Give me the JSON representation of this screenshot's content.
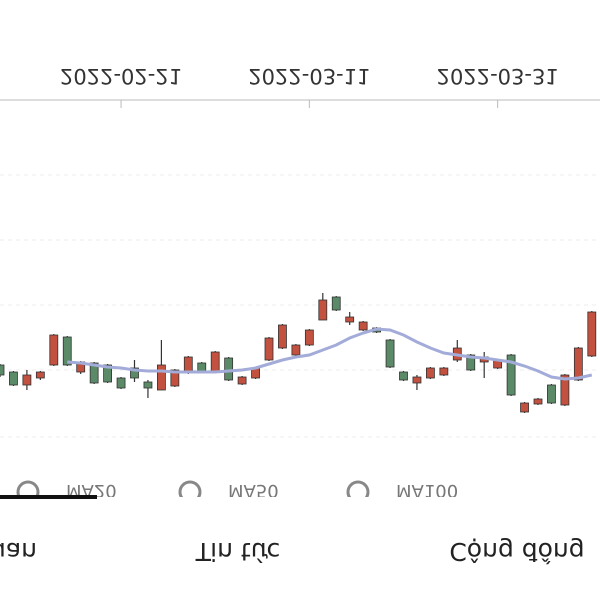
{
  "chart_data": {
    "type": "candlestick",
    "tabs": [
      "Tổng quan",
      "Tin tức",
      "Cộng đồng"
    ],
    "legend": [
      "MA20",
      "MA50",
      "MA100"
    ],
    "categories": [
      null,
      null,
      null,
      null,
      null,
      null,
      null,
      null,
      null,
      "2022-02-21",
      null,
      null,
      null,
      null,
      null,
      null,
      null,
      null,
      null,
      null,
      null,
      null,
      null,
      "2022-03-11",
      null,
      null,
      null,
      null,
      null,
      null,
      null,
      null,
      null,
      null,
      null,
      null,
      null,
      "2022-03-31",
      null,
      null,
      null,
      null,
      null,
      null,
      null
    ],
    "open": [
      365,
      372,
      385,
      378,
      365,
      337,
      372,
      363,
      365,
      378,
      368,
      382,
      390,
      386,
      373,
      363,
      372,
      358,
      384,
      378,
      360,
      348,
      355,
      345,
      320,
      297,
      322,
      330,
      328,
      340,
      372,
      383,
      378,
      375,
      360,
      355,
      362,
      368,
      355,
      412,
      404,
      385,
      405,
      380,
      356
    ],
    "high": [
      377,
      386,
      390,
      380,
      366,
      366,
      374,
      384,
      383,
      389,
      382,
      398,
      390,
      387,
      374,
      373,
      373,
      381,
      385,
      379,
      361,
      349,
      356,
      346,
      320,
      311,
      325,
      331,
      333,
      368,
      381,
      390,
      379,
      376,
      362,
      371,
      378,
      369,
      396,
      413,
      405,
      404,
      406,
      381,
      357
    ],
    "low": [
      364,
      371,
      370,
      371,
      334,
      336,
      361,
      362,
      364,
      377,
      360,
      380,
      340,
      369,
      356,
      362,
      351,
      357,
      376,
      367,
      337,
      324,
      344,
      329,
      293,
      296,
      312,
      321,
      327,
      339,
      371,
      375,
      367,
      367,
      340,
      354,
      352,
      359,
      354,
      402,
      398,
      384,
      374,
      347,
      311
    ],
    "close": [
      375,
      385,
      375,
      372,
      335,
      365,
      362,
      383,
      382,
      388,
      378,
      388,
      365,
      370,
      357,
      372,
      352,
      380,
      377,
      368,
      338,
      325,
      345,
      330,
      300,
      310,
      317,
      322,
      332,
      367,
      380,
      377,
      368,
      368,
      348,
      370,
      357,
      360,
      395,
      403,
      399,
      403,
      375,
      348,
      312
    ],
    "up_color": "#5b8a68",
    "down_color": "#c2513f",
    "series": [
      {
        "name": "MA20",
        "color": "#a3acd9",
        "values": [
          null,
          null,
          null,
          null,
          null,
          362,
          363,
          365,
          367,
          368,
          370,
          371,
          371,
          372,
          372,
          372,
          372,
          371,
          370,
          368,
          364,
          360,
          357,
          355,
          350,
          345,
          338,
          333,
          329,
          330,
          335,
          342,
          348,
          353,
          355,
          357,
          358,
          360,
          362,
          366,
          371,
          377,
          379,
          378,
          375
        ]
      }
    ],
    "ylim": [
      260,
      460
    ]
  }
}
